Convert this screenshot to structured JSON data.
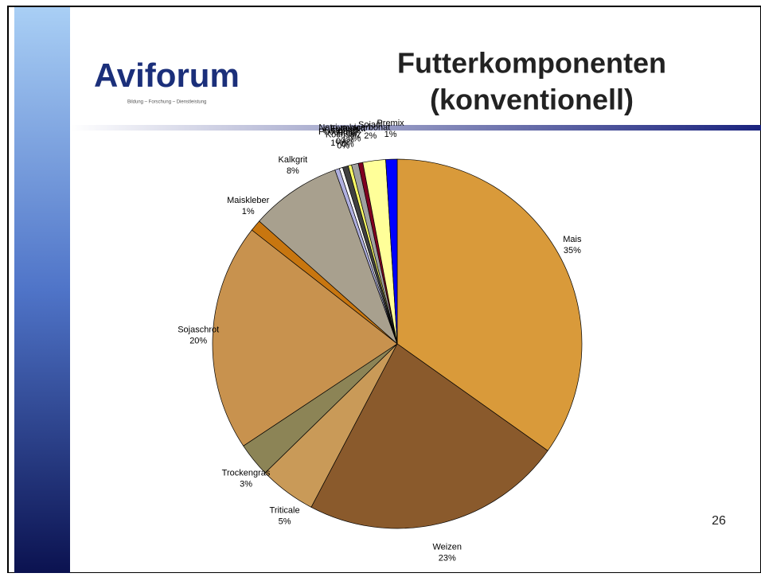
{
  "slide": {
    "logo": "Aviforum",
    "tagline": "Bildung – Forschung – Dienstleistung",
    "page_number": "26"
  },
  "chart_data": {
    "type": "pie",
    "title": "Futterkomponenten",
    "subtitle": "(konventionell)",
    "categories": [
      "Mais",
      "Weizen",
      "Triticale",
      "Trockengras",
      "Sojaschrot",
      "Maiskleber",
      "Kalkgrit",
      "Kochsalz",
      "Hafer",
      "Phosphat",
      "Futterkalk",
      "Futterfett",
      "Natriumbicarbonat",
      "Sojaöl",
      "Premix"
    ],
    "values": [
      35,
      23,
      5,
      3,
      20,
      1,
      8,
      0.4,
      0.3,
      0.5,
      0.3,
      0.6,
      0.4,
      2,
      1
    ],
    "value_labels": [
      "35%",
      "23%",
      "5%",
      "3%",
      "20%",
      "1%",
      "8%",
      "0%",
      "0%",
      "1%",
      "0%",
      "1%",
      "0%",
      "2%",
      "1%"
    ],
    "colors": [
      "#d99a3a",
      "#8a5a2c",
      "#c99a58",
      "#8c8456",
      "#c8924e",
      "#c8760f",
      "#a8a08e",
      "#b0b0e0",
      "#ffffff",
      "#404040",
      "#ffff66",
      "#a0a0a0",
      "#800020",
      "#ffff99",
      "#0000ff"
    ]
  }
}
